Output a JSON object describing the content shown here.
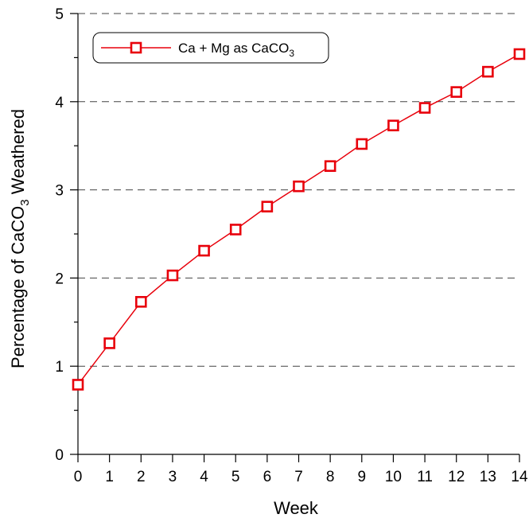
{
  "chart_data": {
    "type": "line",
    "title": "",
    "xlabel": "Week",
    "ylabel_parts": [
      "Percentage of CaCO",
      "3",
      " Weathered"
    ],
    "xlim": [
      0,
      14
    ],
    "ylim": [
      0,
      5
    ],
    "x_ticks": [
      0,
      1,
      2,
      3,
      4,
      5,
      6,
      7,
      8,
      9,
      10,
      11,
      12,
      13,
      14
    ],
    "y_ticks": [
      0,
      1,
      2,
      3,
      4,
      5
    ],
    "y_minor_step": 0.5,
    "grid": {
      "y_major_dashed": true,
      "x": false
    },
    "legend": {
      "placement": "top-left",
      "boxed": true,
      "rounded": true
    },
    "series": [
      {
        "name_parts": [
          "Ca + Mg as CaCO",
          "3"
        ],
        "color": "#e8000b",
        "marker": "square-open",
        "x": [
          0,
          1,
          2,
          3,
          4,
          5,
          6,
          7,
          8,
          9,
          10,
          11,
          12,
          13,
          14
        ],
        "y": [
          0.79,
          1.26,
          1.73,
          2.03,
          2.31,
          2.55,
          2.81,
          3.04,
          3.27,
          3.52,
          3.73,
          3.93,
          4.11,
          4.34,
          4.54
        ]
      }
    ]
  }
}
